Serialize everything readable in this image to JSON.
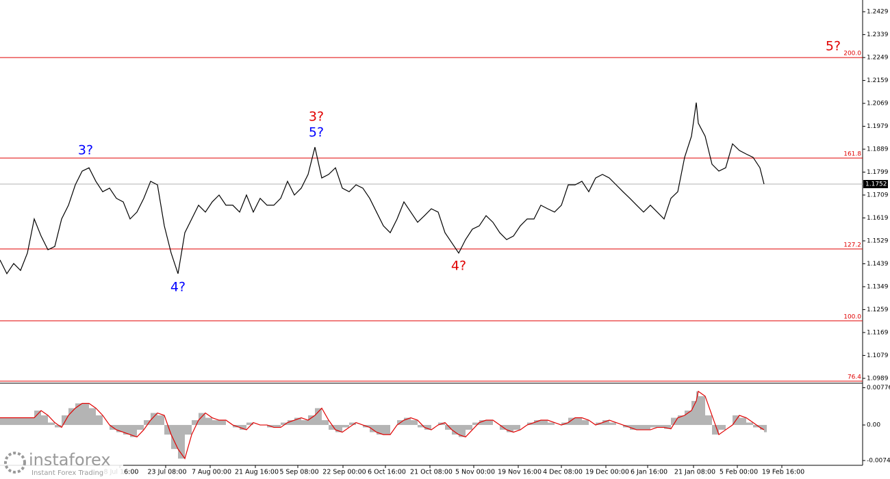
{
  "chart_data": [
    {
      "type": "line",
      "xlim": [
        0,
        1260
      ],
      "xticks": [
        {
          "value": 175,
          "label": "8 Jul 16:00"
        },
        {
          "value": 242,
          "label": "23 Jul 08:00"
        },
        {
          "value": 307,
          "label": "7 Aug 00:00"
        },
        {
          "value": 373,
          "label": "21 Aug 16:00"
        },
        {
          "value": 435,
          "label": "5 Sep 08:00"
        },
        {
          "value": 501,
          "label": "22 Sep 00:00"
        },
        {
          "value": 563,
          "label": "6 Oct 16:00"
        },
        {
          "value": 628,
          "label": "21 Oct 08:00"
        },
        {
          "value": 692,
          "label": "5 Nov 00:00"
        },
        {
          "value": 757,
          "label": "19 Nov 16:00"
        },
        {
          "value": 820,
          "label": "4 Dec 08:00"
        },
        {
          "value": 885,
          "label": "19 Dec 00:00"
        },
        {
          "value": 946,
          "label": "6 Jan 16:00"
        },
        {
          "value": 1013,
          "label": "21 Jan 08:00"
        },
        {
          "value": 1077,
          "label": "5 Feb 00:00"
        },
        {
          "value": 1142,
          "label": "19 Feb 16:00"
        }
      ],
      "ylim": [
        1.0978,
        1.2475
      ],
      "yticks": [
        1.2429,
        1.2339,
        1.2249,
        1.2159,
        1.2069,
        1.1979,
        1.1889,
        1.1799,
        1.1709,
        1.1619,
        1.1529,
        1.1439,
        1.1349,
        1.1259,
        1.1169,
        1.1079,
        1.0989
      ],
      "color": "#000000",
      "x": [
        0,
        10,
        20,
        30,
        40,
        50,
        60,
        70,
        80,
        90,
        100,
        110,
        120,
        130,
        140,
        150,
        160,
        170,
        180,
        190,
        200,
        210,
        220,
        230,
        240,
        250,
        260,
        270,
        280,
        290,
        300,
        310,
        320,
        330,
        340,
        350,
        360,
        370,
        380,
        390,
        400,
        410,
        420,
        430,
        440,
        450,
        460,
        470,
        480,
        490,
        500,
        510,
        520,
        530,
        540,
        550,
        560,
        570,
        580,
        590,
        600,
        610,
        620,
        630,
        640,
        650,
        660,
        670,
        680,
        690,
        700,
        710,
        720,
        730,
        740,
        750,
        760,
        770,
        780,
        790,
        800,
        810,
        820,
        830,
        840,
        850,
        860,
        870,
        880,
        890,
        900,
        910,
        920,
        930,
        940,
        950,
        960,
        970,
        980,
        990,
        1000,
        1010,
        1017,
        1020,
        1030,
        1040,
        1050,
        1060,
        1070,
        1080,
        1090,
        1100,
        1110,
        1116
      ],
      "values": [
        1.1454,
        1.14,
        1.144,
        1.1413,
        1.1481,
        1.1615,
        1.1548,
        1.1494,
        1.1507,
        1.1615,
        1.1669,
        1.1749,
        1.1803,
        1.1816,
        1.1763,
        1.1722,
        1.1736,
        1.1696,
        1.1682,
        1.1615,
        1.1642,
        1.1696,
        1.1763,
        1.1749,
        1.1588,
        1.1481,
        1.14,
        1.1561,
        1.1615,
        1.1669,
        1.1642,
        1.1682,
        1.1709,
        1.1669,
        1.1669,
        1.1642,
        1.1709,
        1.1642,
        1.1696,
        1.1669,
        1.1669,
        1.1696,
        1.1763,
        1.1709,
        1.1736,
        1.179,
        1.1897,
        1.1776,
        1.179,
        1.1816,
        1.1736,
        1.1722,
        1.1749,
        1.1736,
        1.1696,
        1.1642,
        1.1588,
        1.1561,
        1.1615,
        1.1682,
        1.1642,
        1.1602,
        1.1628,
        1.1655,
        1.1642,
        1.1561,
        1.1521,
        1.1481,
        1.1534,
        1.1575,
        1.1588,
        1.1628,
        1.1602,
        1.1561,
        1.1534,
        1.1548,
        1.1588,
        1.1615,
        1.1615,
        1.1669,
        1.1655,
        1.1642,
        1.1669,
        1.1749,
        1.1749,
        1.1763,
        1.1722,
        1.1776,
        1.179,
        1.1776,
        1.1749,
        1.1722,
        1.1696,
        1.1669,
        1.1642,
        1.1669,
        1.1642,
        1.1615,
        1.1696,
        1.1722,
        1.1857,
        1.194,
        1.2072,
        1.1991,
        1.194,
        1.183,
        1.1803,
        1.1816,
        1.191,
        1.1884,
        1.187,
        1.1857,
        1.1816,
        1.1752
      ],
      "last_price": 1.1752,
      "levels_color": "#e00000",
      "levels": [
        {
          "label": "200.0",
          "price": 1.2249
        },
        {
          "label": "161.8",
          "price": 1.1854
        },
        {
          "label": "127.2",
          "price": 1.1497
        },
        {
          "label": "100.0",
          "price": 1.1215
        },
        {
          "label": "76.4",
          "price": 1.0978
        }
      ],
      "annotations": [
        {
          "text": "3?",
          "color": "#0000ff",
          "x": 125,
          "y": 1.1884
        },
        {
          "text": "4?",
          "color": "#0000ff",
          "x": 260,
          "y": 1.1346
        },
        {
          "text": "3?",
          "color": "#e00000",
          "x": 462,
          "y": 1.2015
        },
        {
          "text": "5?",
          "color": "#0000ff",
          "x": 462,
          "y": 1.1953
        },
        {
          "text": "4?",
          "color": "#e00000",
          "x": 670,
          "y": 1.143
        },
        {
          "text": "5?",
          "color": "#e00000",
          "x": 1217,
          "y": 1.2292
        }
      ]
    },
    {
      "type": "bar",
      "xlim": [
        0,
        1260
      ],
      "ylim": [
        -0.0084,
        0.0087
      ],
      "yticks": [
        0.00776,
        {
          "value": 0,
          "label": "0.00"
        },
        -0.0074
      ],
      "x": [
        0,
        10,
        20,
        30,
        40,
        50,
        60,
        70,
        80,
        90,
        100,
        110,
        120,
        130,
        140,
        150,
        160,
        170,
        180,
        190,
        200,
        210,
        220,
        230,
        240,
        250,
        260,
        270,
        280,
        290,
        300,
        310,
        320,
        330,
        340,
        350,
        360,
        370,
        380,
        390,
        400,
        410,
        420,
        430,
        440,
        450,
        460,
        470,
        480,
        490,
        500,
        510,
        520,
        530,
        540,
        550,
        560,
        570,
        580,
        590,
        600,
        610,
        620,
        630,
        640,
        650,
        660,
        670,
        680,
        690,
        700,
        710,
        720,
        730,
        740,
        750,
        760,
        770,
        780,
        790,
        800,
        810,
        820,
        830,
        840,
        850,
        860,
        870,
        880,
        890,
        900,
        910,
        920,
        930,
        940,
        950,
        960,
        970,
        980,
        990,
        1000,
        1010,
        1017,
        1020,
        1030,
        1040,
        1050,
        1060,
        1070,
        1080,
        1090,
        1100,
        1110,
        1116
      ],
      "histogram": {
        "color": "#b4b4b4",
        "values": [
          0.0015,
          0.0015,
          0.0015,
          0.0015,
          0.0015,
          0.003,
          0.002,
          0.0005,
          -0.0005,
          0.002,
          0.0035,
          0.0045,
          0.0045,
          0.0035,
          0.002,
          0,
          -0.001,
          -0.0015,
          -0.002,
          -0.0025,
          -0.001,
          0.001,
          0.0025,
          0.002,
          -0.002,
          -0.005,
          -0.007,
          -0.002,
          0.001,
          0.0025,
          0.0015,
          0.001,
          0.001,
          0,
          -0.0005,
          -0.001,
          0.0005,
          0,
          0,
          -0.0005,
          -0.0005,
          0.0005,
          0.001,
          0.0015,
          0.001,
          0.002,
          0.0035,
          0.001,
          -0.001,
          -0.0015,
          -0.0005,
          0.0005,
          0,
          -0.0005,
          -0.0015,
          -0.002,
          -0.002,
          0,
          0.001,
          0.0015,
          0.001,
          -0.0005,
          -0.001,
          0,
          0.0005,
          -0.001,
          -0.002,
          -0.0025,
          -0.001,
          0.0005,
          0.001,
          0.001,
          0,
          -0.001,
          -0.0015,
          -0.001,
          0,
          0.0005,
          0.001,
          0.001,
          0.0005,
          0,
          0.0005,
          0.0015,
          0.0015,
          0.001,
          0,
          0.0005,
          0.001,
          0.0005,
          0,
          -0.0005,
          -0.001,
          -0.001,
          -0.001,
          -0.0005,
          -0.0005,
          -0.0008,
          0.0015,
          0.002,
          0.003,
          0.005,
          0.007,
          0.006,
          0.002,
          -0.002,
          -0.001,
          0,
          0.002,
          0.0015,
          0.0005,
          -0.0005,
          -0.001,
          -0.0015
        ]
      },
      "signal": {
        "color": "#e00000",
        "values": [
          0.0015,
          0.0015,
          0.0015,
          0.0015,
          0.0015,
          0.0015,
          0.003,
          0.002,
          0.0005,
          -0.0005,
          0.002,
          0.0035,
          0.0045,
          0.0045,
          0.0035,
          0.002,
          0,
          -0.001,
          -0.0015,
          -0.002,
          -0.0025,
          -0.001,
          0.001,
          0.0025,
          0.002,
          -0.002,
          -0.005,
          -0.007,
          -0.002,
          0.001,
          0.0025,
          0.0015,
          0.001,
          0.001,
          0,
          -0.0005,
          -0.001,
          0.0005,
          0,
          0,
          -0.0005,
          -0.0005,
          0.0005,
          0.001,
          0.0015,
          0.001,
          0.002,
          0.0035,
          0.001,
          -0.001,
          -0.0015,
          -0.0005,
          0.0005,
          0,
          -0.0005,
          -0.0015,
          -0.002,
          -0.002,
          0,
          0.001,
          0.0015,
          0.001,
          -0.0005,
          -0.001,
          0,
          0.0005,
          -0.001,
          -0.002,
          -0.0025,
          -0.001,
          0.0005,
          0.001,
          0.001,
          0,
          -0.001,
          -0.0015,
          -0.001,
          0,
          0.0005,
          0.001,
          0.001,
          0.0005,
          0,
          0.0005,
          0.0015,
          0.0015,
          0.001,
          0,
          0.0005,
          0.001,
          0.0005,
          0,
          -0.0005,
          -0.001,
          -0.001,
          -0.001,
          -0.0005,
          -0.0005,
          -0.0008,
          0.0015,
          0.002,
          0.003,
          0.005,
          0.007,
          0.006,
          0.002,
          -0.002,
          -0.001,
          0,
          0.002,
          0.0015,
          0.0005,
          -0.0005,
          -0.001
        ]
      }
    }
  ],
  "brand": {
    "name": "instaforex",
    "tagline": "Instant Forex Trading"
  }
}
